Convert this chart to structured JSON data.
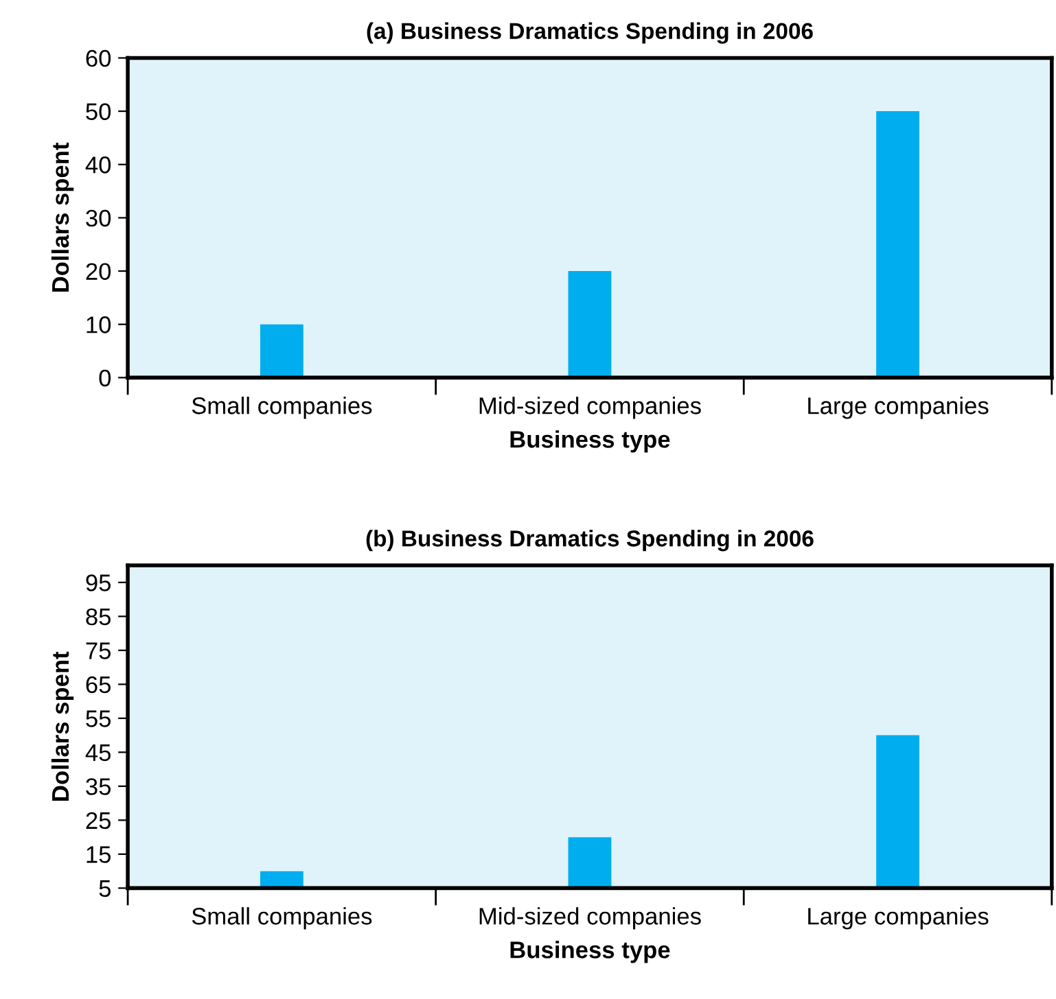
{
  "chart_data": [
    {
      "type": "bar",
      "title": "(a) Business Dramatics Spending in 2006",
      "xlabel": "Business type",
      "ylabel": "Dollars spent",
      "categories": [
        "Small companies",
        "Mid-sized companies",
        "Large companies"
      ],
      "values": [
        10,
        20,
        50
      ],
      "color": "#00aeef",
      "ylim": [
        0,
        60
      ],
      "yticks": [
        0,
        10,
        20,
        30,
        40,
        50,
        60
      ]
    },
    {
      "type": "bar",
      "title": "(b) Business Dramatics Spending in 2006",
      "xlabel": "Business type",
      "ylabel": "Dollars spent",
      "categories": [
        "Small companies",
        "Mid-sized companies",
        "Large companies"
      ],
      "values": [
        10,
        20,
        50
      ],
      "color": "#00aeef",
      "ylim": [
        5,
        100
      ],
      "yticks": [
        5,
        15,
        25,
        35,
        45,
        55,
        65,
        75,
        85,
        95
      ]
    }
  ]
}
